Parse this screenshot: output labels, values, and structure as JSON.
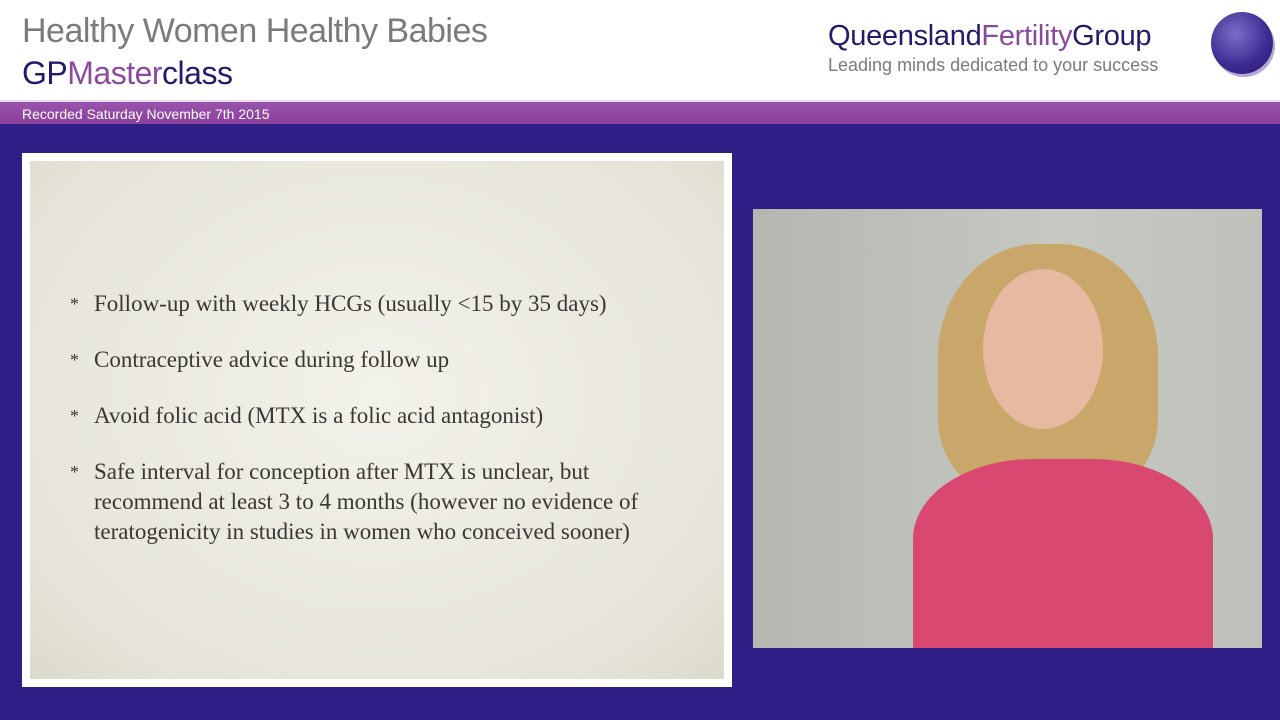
{
  "header": {
    "title": "Healthy Women  Healthy Babies",
    "subtitle_gp": "GP",
    "subtitle_master": "Master",
    "subtitle_class": "class",
    "brand_queensland": "Queensland",
    "brand_fertility": "Fertility",
    "brand_group": "Group",
    "tagline": "Leading minds dedicated to your success"
  },
  "banner": {
    "recorded": "Recorded Saturday November 7th 2015"
  },
  "slide": {
    "bullets": [
      "Follow-up with weekly HCGs (usually <15 by 35 days)",
      "Contraceptive advice during follow up",
      "Avoid folic acid (MTX is a folic acid antagonist)",
      "Safe interval for conception after MTX is unclear, but recommend at least 3 to 4 months (however no evidence of teratogenicity in studies in women who conceived sooner)"
    ],
    "bullet_symbol": "*"
  },
  "colors": {
    "background": "#2e1e86",
    "band": "#8a3f9c",
    "navy": "#221b6b",
    "purple": "#8c4a9e"
  }
}
